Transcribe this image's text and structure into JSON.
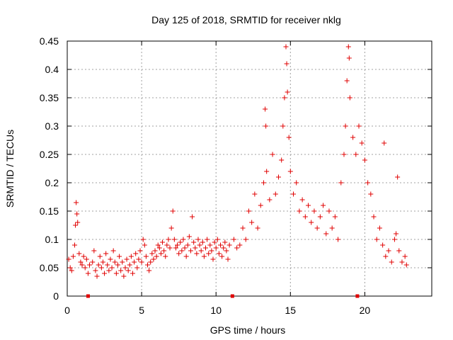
{
  "chart_data": {
    "type": "scatter",
    "title": "Day 125 of 2018, SRMTID for receiver nklg",
    "xlabel": "GPS time / hours",
    "ylabel": "SRMTID / TECUs",
    "xlim": [
      0,
      24.5
    ],
    "ylim": [
      0,
      0.45
    ],
    "x_ticks": [
      0,
      5,
      10,
      15,
      20
    ],
    "x_tick_labels": [
      "0",
      "5",
      "10",
      "15",
      "20"
    ],
    "y_ticks": [
      0,
      0.05,
      0.1,
      0.15,
      0.2,
      0.25,
      0.3,
      0.35,
      0.4,
      0.45
    ],
    "y_tick_labels": [
      "0",
      "0.05",
      "0.1",
      "0.15",
      "0.2",
      "0.25",
      "0.3",
      "0.35",
      "0.4",
      "0.45"
    ],
    "grid": true,
    "marker": "+",
    "color": "#e00000",
    "series": [
      {
        "name": "SRMTID",
        "points": [
          [
            0.1,
            0.065
          ],
          [
            0.2,
            0.05
          ],
          [
            0.3,
            0.045
          ],
          [
            0.4,
            0.07
          ],
          [
            0.5,
            0.09
          ],
          [
            0.55,
            0.125
          ],
          [
            0.6,
            0.165
          ],
          [
            0.65,
            0.145
          ],
          [
            0.7,
            0.13
          ],
          [
            0.8,
            0.075
          ],
          [
            0.9,
            0.06
          ],
          [
            1.0,
            0.055
          ],
          [
            1.1,
            0.07
          ],
          [
            1.2,
            0.05
          ],
          [
            1.3,
            0.065
          ],
          [
            1.4,
            0.04
          ],
          [
            1.5,
            0.055
          ],
          [
            1.7,
            0.06
          ],
          [
            1.8,
            0.08
          ],
          [
            1.9,
            0.045
          ],
          [
            2.0,
            0.035
          ],
          [
            2.1,
            0.055
          ],
          [
            2.2,
            0.07
          ],
          [
            2.3,
            0.05
          ],
          [
            2.4,
            0.06
          ],
          [
            2.5,
            0.04
          ],
          [
            2.6,
            0.075
          ],
          [
            2.7,
            0.055
          ],
          [
            2.8,
            0.045
          ],
          [
            2.9,
            0.065
          ],
          [
            3.0,
            0.05
          ],
          [
            3.1,
            0.08
          ],
          [
            3.2,
            0.06
          ],
          [
            3.3,
            0.04
          ],
          [
            3.4,
            0.055
          ],
          [
            3.5,
            0.07
          ],
          [
            3.6,
            0.045
          ],
          [
            3.7,
            0.06
          ],
          [
            3.8,
            0.035
          ],
          [
            3.9,
            0.05
          ],
          [
            4.0,
            0.065
          ],
          [
            4.1,
            0.045
          ],
          [
            4.2,
            0.055
          ],
          [
            4.3,
            0.07
          ],
          [
            4.4,
            0.04
          ],
          [
            4.5,
            0.06
          ],
          [
            4.6,
            0.075
          ],
          [
            4.7,
            0.05
          ],
          [
            4.8,
            0.065
          ],
          [
            4.9,
            0.08
          ],
          [
            5.0,
            0.06
          ],
          [
            5.1,
            0.1
          ],
          [
            5.2,
            0.09
          ],
          [
            5.3,
            0.07
          ],
          [
            5.4,
            0.055
          ],
          [
            5.5,
            0.045
          ],
          [
            5.6,
            0.06
          ],
          [
            5.7,
            0.075
          ],
          [
            5.8,
            0.065
          ],
          [
            5.9,
            0.08
          ],
          [
            6.0,
            0.07
          ],
          [
            6.1,
            0.09
          ],
          [
            6.2,
            0.085
          ],
          [
            6.3,
            0.075
          ],
          [
            6.4,
            0.095
          ],
          [
            6.5,
            0.08
          ],
          [
            6.6,
            0.07
          ],
          [
            6.7,
            0.09
          ],
          [
            6.8,
            0.1
          ],
          [
            6.9,
            0.085
          ],
          [
            7.0,
            0.12
          ],
          [
            7.1,
            0.15
          ],
          [
            7.2,
            0.1
          ],
          [
            7.3,
            0.085
          ],
          [
            7.4,
            0.09
          ],
          [
            7.5,
            0.075
          ],
          [
            7.6,
            0.095
          ],
          [
            7.7,
            0.08
          ],
          [
            7.8,
            0.1
          ],
          [
            7.9,
            0.085
          ],
          [
            8.0,
            0.07
          ],
          [
            8.1,
            0.09
          ],
          [
            8.2,
            0.105
          ],
          [
            8.3,
            0.08
          ],
          [
            8.4,
            0.14
          ],
          [
            8.5,
            0.095
          ],
          [
            8.6,
            0.085
          ],
          [
            8.7,
            0.075
          ],
          [
            8.8,
            0.1
          ],
          [
            8.9,
            0.09
          ],
          [
            9.0,
            0.08
          ],
          [
            9.1,
            0.095
          ],
          [
            9.2,
            0.07
          ],
          [
            9.3,
            0.085
          ],
          [
            9.4,
            0.1
          ],
          [
            9.5,
            0.075
          ],
          [
            9.6,
            0.09
          ],
          [
            9.7,
            0.08
          ],
          [
            9.8,
            0.065
          ],
          [
            9.9,
            0.095
          ],
          [
            10.0,
            0.085
          ],
          [
            10.1,
            0.1
          ],
          [
            10.2,
            0.075
          ],
          [
            10.3,
            0.09
          ],
          [
            10.4,
            0.07
          ],
          [
            10.5,
            0.085
          ],
          [
            10.6,
            0.095
          ],
          [
            10.7,
            0.08
          ],
          [
            10.8,
            0.065
          ],
          [
            10.9,
            0.09
          ],
          [
            11.2,
            0.1
          ],
          [
            11.4,
            0.085
          ],
          [
            11.6,
            0.09
          ],
          [
            11.8,
            0.12
          ],
          [
            12.0,
            0.1
          ],
          [
            12.2,
            0.15
          ],
          [
            12.4,
            0.13
          ],
          [
            12.6,
            0.18
          ],
          [
            12.8,
            0.12
          ],
          [
            13.0,
            0.16
          ],
          [
            13.2,
            0.2
          ],
          [
            13.3,
            0.33
          ],
          [
            13.35,
            0.3
          ],
          [
            13.4,
            0.22
          ],
          [
            13.6,
            0.17
          ],
          [
            13.8,
            0.25
          ],
          [
            14.0,
            0.18
          ],
          [
            14.2,
            0.21
          ],
          [
            14.4,
            0.24
          ],
          [
            14.5,
            0.3
          ],
          [
            14.6,
            0.35
          ],
          [
            14.7,
            0.44
          ],
          [
            14.75,
            0.41
          ],
          [
            14.8,
            0.36
          ],
          [
            14.9,
            0.28
          ],
          [
            15.0,
            0.22
          ],
          [
            15.2,
            0.18
          ],
          [
            15.4,
            0.2
          ],
          [
            15.6,
            0.15
          ],
          [
            15.8,
            0.17
          ],
          [
            16.0,
            0.14
          ],
          [
            16.2,
            0.16
          ],
          [
            16.4,
            0.13
          ],
          [
            16.6,
            0.15
          ],
          [
            16.8,
            0.12
          ],
          [
            17.0,
            0.14
          ],
          [
            17.2,
            0.16
          ],
          [
            17.4,
            0.11
          ],
          [
            17.6,
            0.15
          ],
          [
            17.8,
            0.12
          ],
          [
            18.0,
            0.14
          ],
          [
            18.2,
            0.1
          ],
          [
            18.4,
            0.2
          ],
          [
            18.6,
            0.25
          ],
          [
            18.7,
            0.3
          ],
          [
            18.8,
            0.38
          ],
          [
            18.9,
            0.44
          ],
          [
            18.95,
            0.42
          ],
          [
            19.0,
            0.35
          ],
          [
            19.2,
            0.28
          ],
          [
            19.4,
            0.25
          ],
          [
            19.6,
            0.3
          ],
          [
            19.8,
            0.27
          ],
          [
            20.0,
            0.24
          ],
          [
            20.2,
            0.2
          ],
          [
            20.4,
            0.18
          ],
          [
            20.6,
            0.14
          ],
          [
            20.8,
            0.1
          ],
          [
            21.0,
            0.12
          ],
          [
            21.2,
            0.09
          ],
          [
            21.3,
            0.27
          ],
          [
            21.4,
            0.07
          ],
          [
            21.6,
            0.08
          ],
          [
            21.8,
            0.06
          ],
          [
            22.0,
            0.1
          ],
          [
            22.1,
            0.11
          ],
          [
            22.2,
            0.21
          ],
          [
            22.3,
            0.08
          ],
          [
            22.5,
            0.06
          ],
          [
            22.7,
            0.07
          ],
          [
            22.8,
            0.055
          ]
        ]
      }
    ],
    "gap_markers": [
      1.4,
      11.1,
      19.5
    ]
  }
}
